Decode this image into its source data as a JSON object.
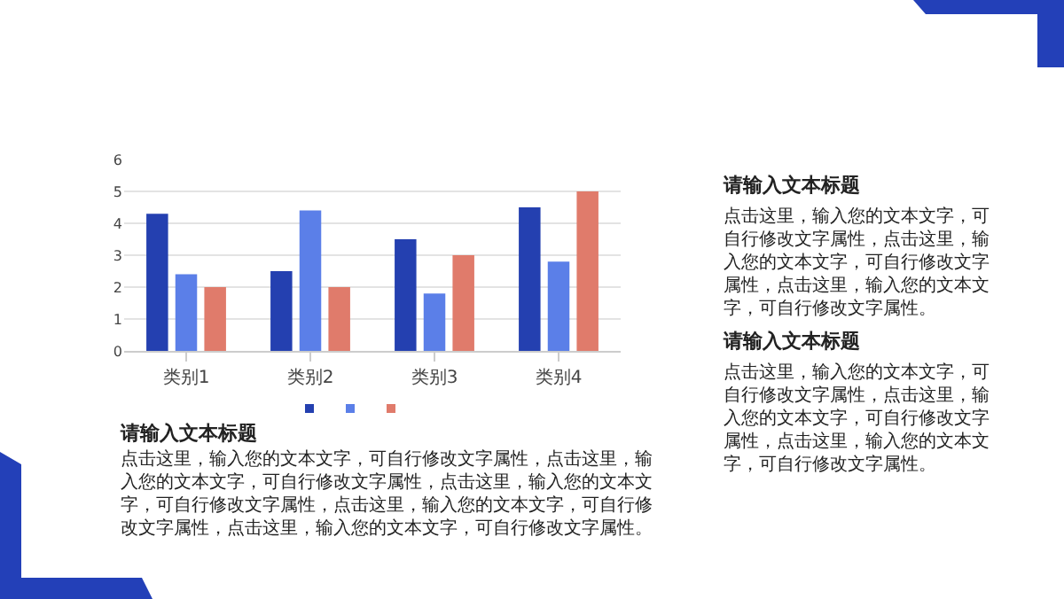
{
  "chart_data": {
    "type": "bar",
    "categories": [
      "类别1",
      "类别2",
      "类别3",
      "类别4"
    ],
    "series": [
      {
        "color": "#2440b0",
        "values": [
          4.3,
          2.5,
          3.5,
          4.5
        ]
      },
      {
        "color": "#5b7fe8",
        "values": [
          2.4,
          4.4,
          1.8,
          2.8
        ]
      },
      {
        "color": "#e07b6b",
        "values": [
          2,
          2,
          3,
          5
        ]
      }
    ],
    "ylim": [
      0,
      6
    ],
    "yticks": [
      0,
      1,
      2,
      3,
      4,
      5,
      6
    ],
    "grid": "y",
    "annotations": [
      "请输入文本标题",
      "点击这里，输入您的文本文字，可自行修改文字属性，点击这里，输入您的文本文字，可自行修改文字属性，点击这里，输入您的文本文字，可自行修改文字属性。",
      "请输入文本标题",
      "点击这里，输入您的文本文字，可自行修改文字属性，点击这里，输入您的文本文字，可自行修改文字属性，点击这里，输入您的文本文字，可自行修改文字属性。",
      "请输入文本标题",
      "点击这里，输入您的文本文字，可自行修改文字属性，点击这里，输入您的文本文字，可自行修改文字属性，点击这里，输入您的文本文字，可自行修改文字属性，点击这里，输入您的文本文字，可自行修改文字属性，点击这里，输入您的文本文字，可自行修改文字属性。"
    ]
  }
}
